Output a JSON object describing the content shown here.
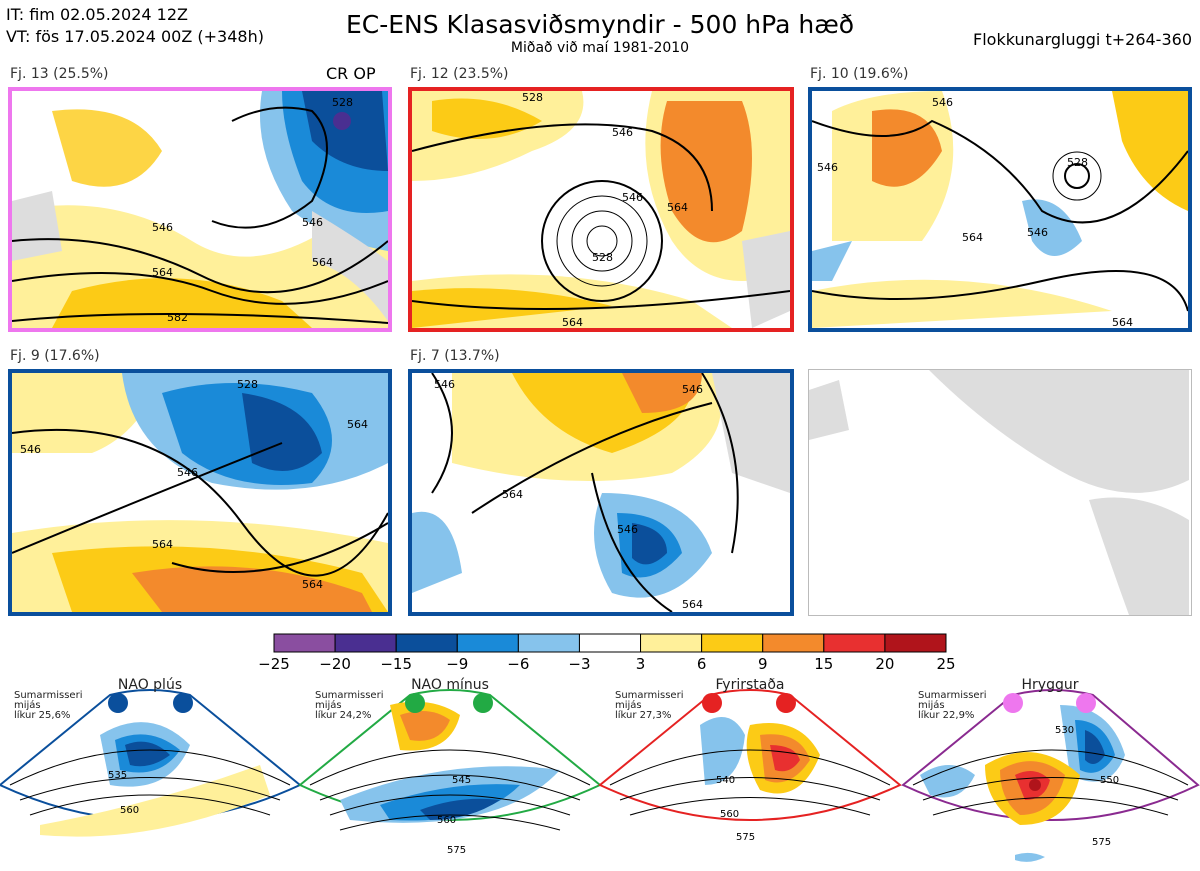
{
  "header": {
    "it_line": "IT: fim 02.05.2024 12Z",
    "vt_line": "VT: fös 17.05.2024 00Z  (+348h)",
    "title": "EC-ENS Klasasviðsmyndir - 500 hPa hæð",
    "subtitle": "Miðað við maí 1981-2010",
    "window": "Flokkunargluggi t+264-360"
  },
  "panels": [
    {
      "label": "Fj. 13 (25.5%)",
      "extra": "CR OP",
      "border": "#ee77ee",
      "contours": [
        "528",
        "546",
        "546",
        "564",
        "564",
        "582"
      ]
    },
    {
      "label": "Fj. 12 (23.5%)",
      "extra": "",
      "border": "#e52222",
      "contours": [
        "528",
        "546",
        "546",
        "528",
        "564",
        "564"
      ]
    },
    {
      "label": "Fj. 10 (19.6%)",
      "extra": "",
      "border": "#0a4f9c",
      "contours": [
        "546",
        "546",
        "528",
        "546",
        "564",
        "564"
      ]
    },
    {
      "label": "Fj. 9 (17.6%)",
      "extra": "",
      "border": "#0a4f9c",
      "contours": [
        "528",
        "546",
        "546",
        "564",
        "564",
        "564"
      ]
    },
    {
      "label": "Fj. 7 (13.7%)",
      "extra": "",
      "border": "#0a4f9c",
      "contours": [
        "546",
        "546",
        "564",
        "546",
        "564"
      ]
    }
  ],
  "chart_data": {
    "type": "heatmap",
    "colorbar": {
      "ticks": [
        "−25",
        "−20",
        "−15",
        "−9",
        "−6",
        "−3",
        "3",
        "6",
        "9",
        "15",
        "20",
        "25"
      ],
      "colors": [
        "#8a4ea0",
        "#4a2f91",
        "#0b4f9b",
        "#1a8ad8",
        "#86c3ec",
        "#ffffff",
        "#fff09a",
        "#fccb16",
        "#f38a2c",
        "#e83030",
        "#b0141b"
      ]
    }
  },
  "regimes": [
    {
      "name": "NAO plús",
      "note1": "Sumarmisseri",
      "note2": "mijás",
      "note3": "líkur 25,6%",
      "dot": "#0a4f9c",
      "border": "#0a4f9c",
      "contours": [
        "535",
        "560"
      ]
    },
    {
      "name": "NAO mínus",
      "note1": "Sumarmisseri",
      "note2": "mijás",
      "note3": "líkur 24,2%",
      "dot": "#22aa44",
      "border": "#22aa44",
      "contours": [
        "545",
        "560",
        "575"
      ]
    },
    {
      "name": "Fyrirstaða",
      "note1": "Sumarmisseri",
      "note2": "mijás",
      "note3": "líkur 27,3%",
      "dot": "#e52222",
      "border": "#e52222",
      "contours": [
        "540",
        "560",
        "575"
      ]
    },
    {
      "name": "Hryggur",
      "note1": "Sumarmisseri",
      "note2": "mijás",
      "note3": "líkur 22,9%",
      "dot": "#ee77ee",
      "border": "#8a2a90",
      "contours": [
        "530",
        "550",
        "575"
      ]
    }
  ]
}
